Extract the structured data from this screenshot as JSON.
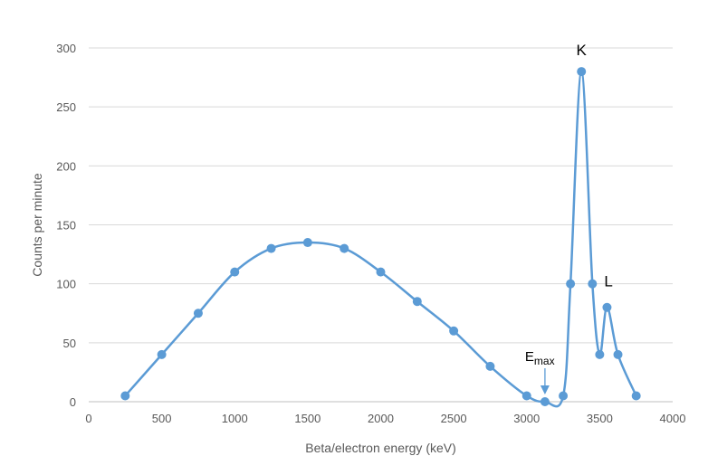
{
  "chart_data": {
    "type": "line",
    "title": "",
    "xlabel": "Beta/electron energy (keV)",
    "ylabel": "Counts per minute",
    "xlim": [
      0,
      4000
    ],
    "ylim": [
      0,
      300
    ],
    "xticks": [
      0,
      500,
      1000,
      1500,
      2000,
      2500,
      3000,
      3500,
      4000
    ],
    "yticks": [
      0,
      50,
      100,
      150,
      200,
      250,
      300
    ],
    "grid": "horizontal",
    "smooth": true,
    "color": "#5B9BD5",
    "series": [
      {
        "x": [
          250,
          500,
          750,
          1000,
          1250,
          1500,
          1750,
          2000,
          2250,
          2500,
          2750,
          3000,
          3125,
          3250,
          3300,
          3375,
          3450,
          3500,
          3550,
          3625,
          3750
        ],
        "y": [
          5,
          40,
          75,
          110,
          130,
          135,
          130,
          110,
          85,
          60,
          30,
          5,
          0,
          5,
          100,
          280,
          100,
          40,
          80,
          40,
          5
        ]
      }
    ],
    "annotations": [
      {
        "text": "K",
        "x": 3375,
        "y": 280
      },
      {
        "text": "L",
        "x": 3450,
        "y": 100
      },
      {
        "text": "E",
        "sub": "max",
        "x": 3125,
        "y": 0,
        "arrow": true
      }
    ]
  }
}
